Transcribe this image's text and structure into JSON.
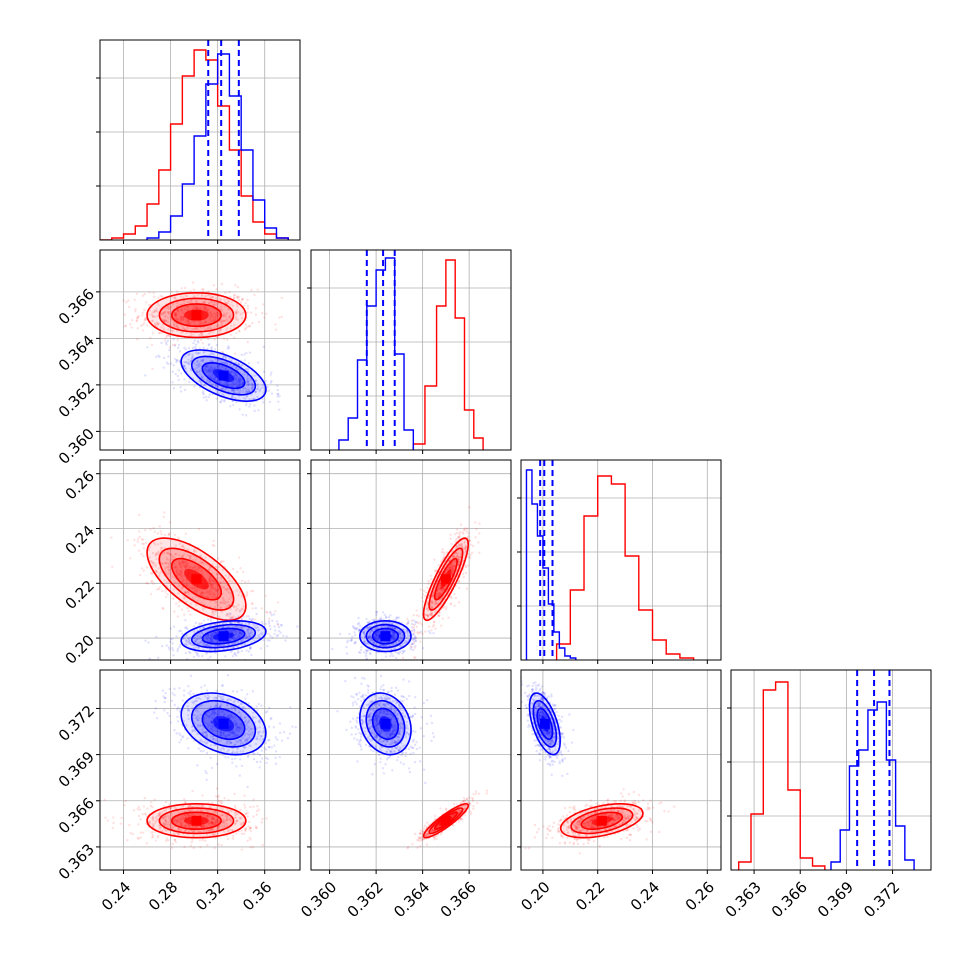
{
  "chart_data": {
    "type": "corner",
    "title": "",
    "grid": true,
    "colors": {
      "red": "#ff0000",
      "blue": "#0000ff"
    },
    "parameters": [
      {
        "key": "p1",
        "range": [
          0.22,
          0.39
        ],
        "ticks": [
          "0.24",
          "0.28",
          "0.32",
          "0.36"
        ]
      },
      {
        "key": "p2",
        "range": [
          0.3592,
          0.3678
        ],
        "ticks": [
          "0.360",
          "0.362",
          "0.364",
          "0.366"
        ]
      },
      {
        "key": "p3",
        "range": [
          0.192,
          0.265
        ],
        "ticks": [
          "0.20",
          "0.22",
          "0.24",
          "0.26"
        ]
      },
      {
        "key": "p4",
        "range": [
          0.3615,
          0.3745
        ],
        "ticks": [
          "0.363",
          "0.366",
          "0.369",
          "0.372"
        ]
      }
    ],
    "series": [
      {
        "color": "#ff0000",
        "means": [
          0.302,
          0.365,
          0.2215,
          0.3647
        ],
        "sigmas": [
          0.021,
          0.00048,
          0.0075,
          0.00055
        ],
        "correlations": {
          "p1_p2": 0.0,
          "p1_p3": -0.65,
          "p1_p4": 0.0,
          "p2_p3": 0.85,
          "p2_p4": 0.9,
          "p3_p4": 0.45
        },
        "quantile_lines": [
          null,
          null,
          null,
          null
        ],
        "hist": {
          "p1": {
            "edges": [
              0.22,
              0.23,
              0.24,
              0.25,
              0.26,
              0.27,
              0.28,
              0.29,
              0.3,
              0.31,
              0.32,
              0.33,
              0.34,
              0.35,
              0.36,
              0.37,
              0.38
            ],
            "heights": [
              0.0,
              0.01,
              0.03,
              0.07,
              0.18,
              0.35,
              0.58,
              0.82,
              0.95,
              0.9,
              0.67,
              0.45,
              0.22,
              0.09,
              0.03,
              0.01
            ]
          },
          "p2": {
            "edges": [
              0.3636,
              0.3641,
              0.3646,
              0.365,
              0.3654,
              0.3658,
              0.3662,
              0.3666
            ],
            "heights": [
              0.03,
              0.32,
              0.72,
              0.95,
              0.66,
              0.2,
              0.06
            ]
          },
          "p3": {
            "edges": [
              0.205,
              0.21,
              0.215,
              0.22,
              0.225,
              0.23,
              0.235,
              0.24,
              0.245,
              0.25,
              0.255
            ],
            "heights": [
              0.08,
              0.35,
              0.72,
              0.92,
              0.88,
              0.52,
              0.25,
              0.1,
              0.03,
              0.01
            ]
          },
          "p4": {
            "edges": [
              0.362,
              0.3628,
              0.3636,
              0.3644,
              0.3652,
              0.366,
              0.3668,
              0.3676
            ],
            "heights": [
              0.04,
              0.28,
              0.9,
              0.94,
              0.4,
              0.06,
              0.02
            ]
          }
        }
      },
      {
        "color": "#0000ff",
        "means": [
          0.325,
          0.3624,
          0.2007,
          0.371
        ],
        "sigmas": [
          0.018,
          0.00055,
          0.0028,
          0.001
        ],
        "correlations": {
          "p1_p2": -0.55,
          "p1_p3": 0.3,
          "p1_p4": -0.3,
          "p2_p3": 0.0,
          "p2_p4": -0.2,
          "p3_p4": -0.55
        },
        "quantile_lines": [
          [
            0.312,
            0.323,
            0.338
          ],
          [
            0.3616,
            0.3623,
            0.3628
          ],
          [
            0.199,
            0.2005,
            0.2035
          ],
          [
            0.3697,
            0.3708,
            0.3718
          ]
        ],
        "hist": {
          "p1": {
            "edges": [
              0.26,
              0.27,
              0.28,
              0.29,
              0.3,
              0.31,
              0.32,
              0.33,
              0.34,
              0.35,
              0.36,
              0.37,
              0.38
            ],
            "heights": [
              0.01,
              0.04,
              0.12,
              0.28,
              0.52,
              0.78,
              0.93,
              0.72,
              0.45,
              0.2,
              0.06,
              0.01
            ]
          },
          "p2": {
            "edges": [
              0.3604,
              0.3608,
              0.3612,
              0.3616,
              0.362,
              0.3624,
              0.3628,
              0.3632,
              0.3636
            ],
            "heights": [
              0.05,
              0.16,
              0.45,
              0.72,
              0.9,
              0.96,
              0.48,
              0.1
            ]
          },
          "p3": {
            "edges": [
              0.194,
              0.196,
              0.198,
              0.2,
              0.202,
              0.204,
              0.206,
              0.208,
              0.21,
              0.212
            ],
            "heights": [
              0.95,
              0.78,
              0.62,
              0.46,
              0.28,
              0.14,
              0.06,
              0.02,
              0.01
            ]
          },
          "p4": {
            "edges": [
              0.368,
              0.3686,
              0.3692,
              0.3698,
              0.3704,
              0.371,
              0.3716,
              0.3722,
              0.3728,
              0.3734
            ],
            "heights": [
              0.04,
              0.2,
              0.52,
              0.6,
              0.8,
              0.84,
              0.55,
              0.22,
              0.05
            ]
          }
        }
      }
    ]
  }
}
